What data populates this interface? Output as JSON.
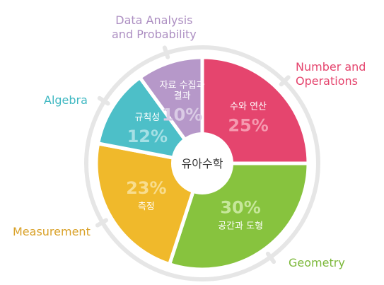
{
  "chart_data": {
    "type": "pie",
    "center_label": "유아수학",
    "slices": [
      {
        "ko": "수와 연산",
        "en": "Number and\nOperations",
        "value": 25,
        "label": "25%",
        "color": "#e5456e",
        "pct_color": "#f59ab0",
        "en_color": "#e5456e"
      },
      {
        "ko": "공간과 도형",
        "en": "Geometry",
        "value": 30,
        "label": "30%",
        "color": "#87c33e",
        "pct_color": "#c6e79a",
        "en_color": "#7cb83a"
      },
      {
        "ko": "측정",
        "en": "Measurement",
        "value": 23,
        "label": "23%",
        "color": "#f0b92b",
        "pct_color": "#f8dd8e",
        "en_color": "#d9a128"
      },
      {
        "ko": "규칙성",
        "en": "Algebra",
        "value": 12,
        "label": "12%",
        "color": "#4dbfc8",
        "pct_color": "#a5e0e5",
        "en_color": "#3fb8c2"
      },
      {
        "ko": "자료 수집과\n결과",
        "en": "Data Analysis\nand Probability",
        "value": 10,
        "label": "10%",
        "color": "#b698c9",
        "pct_color": "#dacbe5",
        "en_color": "#ad8fc2"
      }
    ]
  }
}
